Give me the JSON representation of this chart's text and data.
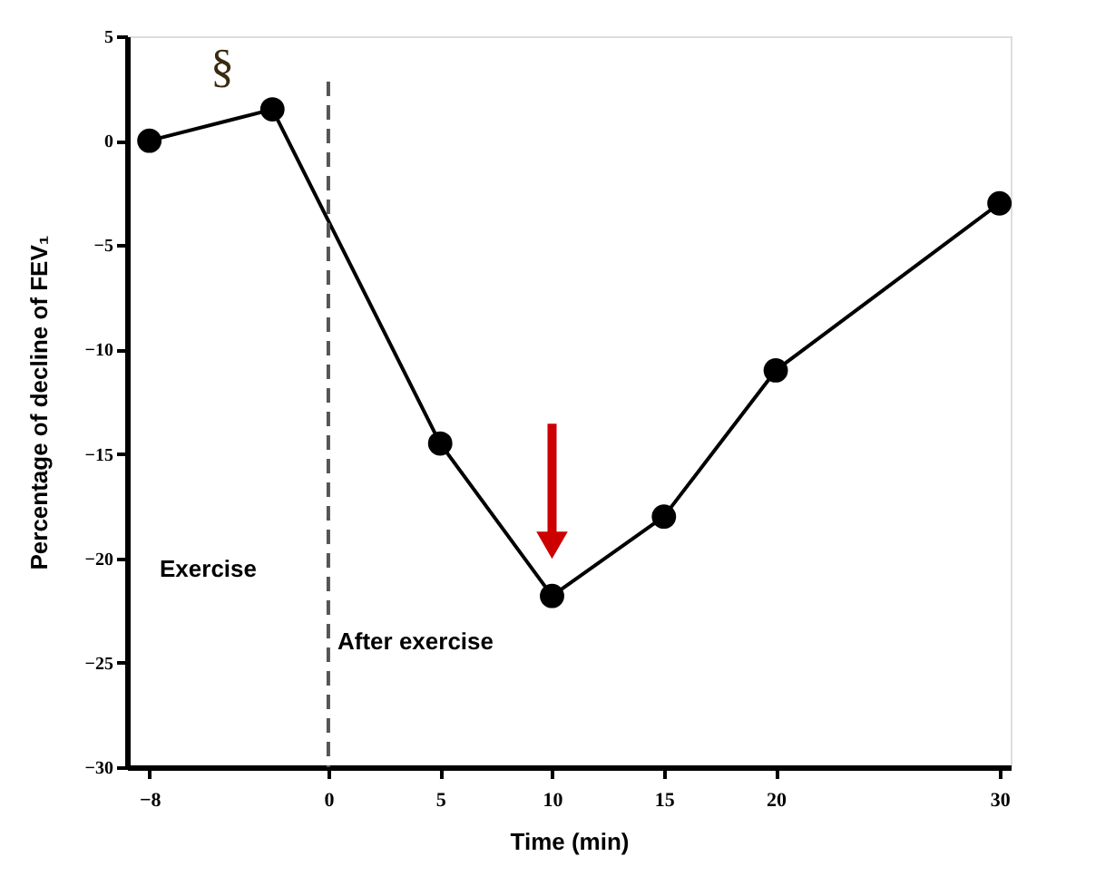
{
  "chart_data": {
    "type": "line",
    "xlabel": "Time  (min)",
    "ylabel": "Percentage of decline of FEV₁",
    "x": [
      -8,
      -2.5,
      5,
      10,
      15,
      20,
      30
    ],
    "series": [
      {
        "color": "#000000",
        "values": [
          0,
          1.5,
          -14.5,
          -21.8,
          -18,
          -11,
          -3
        ]
      }
    ],
    "xlim": [
      -9,
      30.5
    ],
    "xticks": [
      -8,
      0,
      5,
      10,
      15,
      20,
      30
    ],
    "ylim": [
      -30,
      5
    ],
    "yticks": [
      -30,
      -25,
      -20,
      -15,
      -10,
      -5,
      0,
      5
    ],
    "ref_lines": [
      {
        "axis": "x",
        "value": 0,
        "color": "#555555",
        "line_style": "dashed"
      }
    ],
    "annotations": [
      "§",
      "Exercise",
      "After exercise"
    ],
    "marker": "circle",
    "line_style": "solid",
    "grid": false
  }
}
